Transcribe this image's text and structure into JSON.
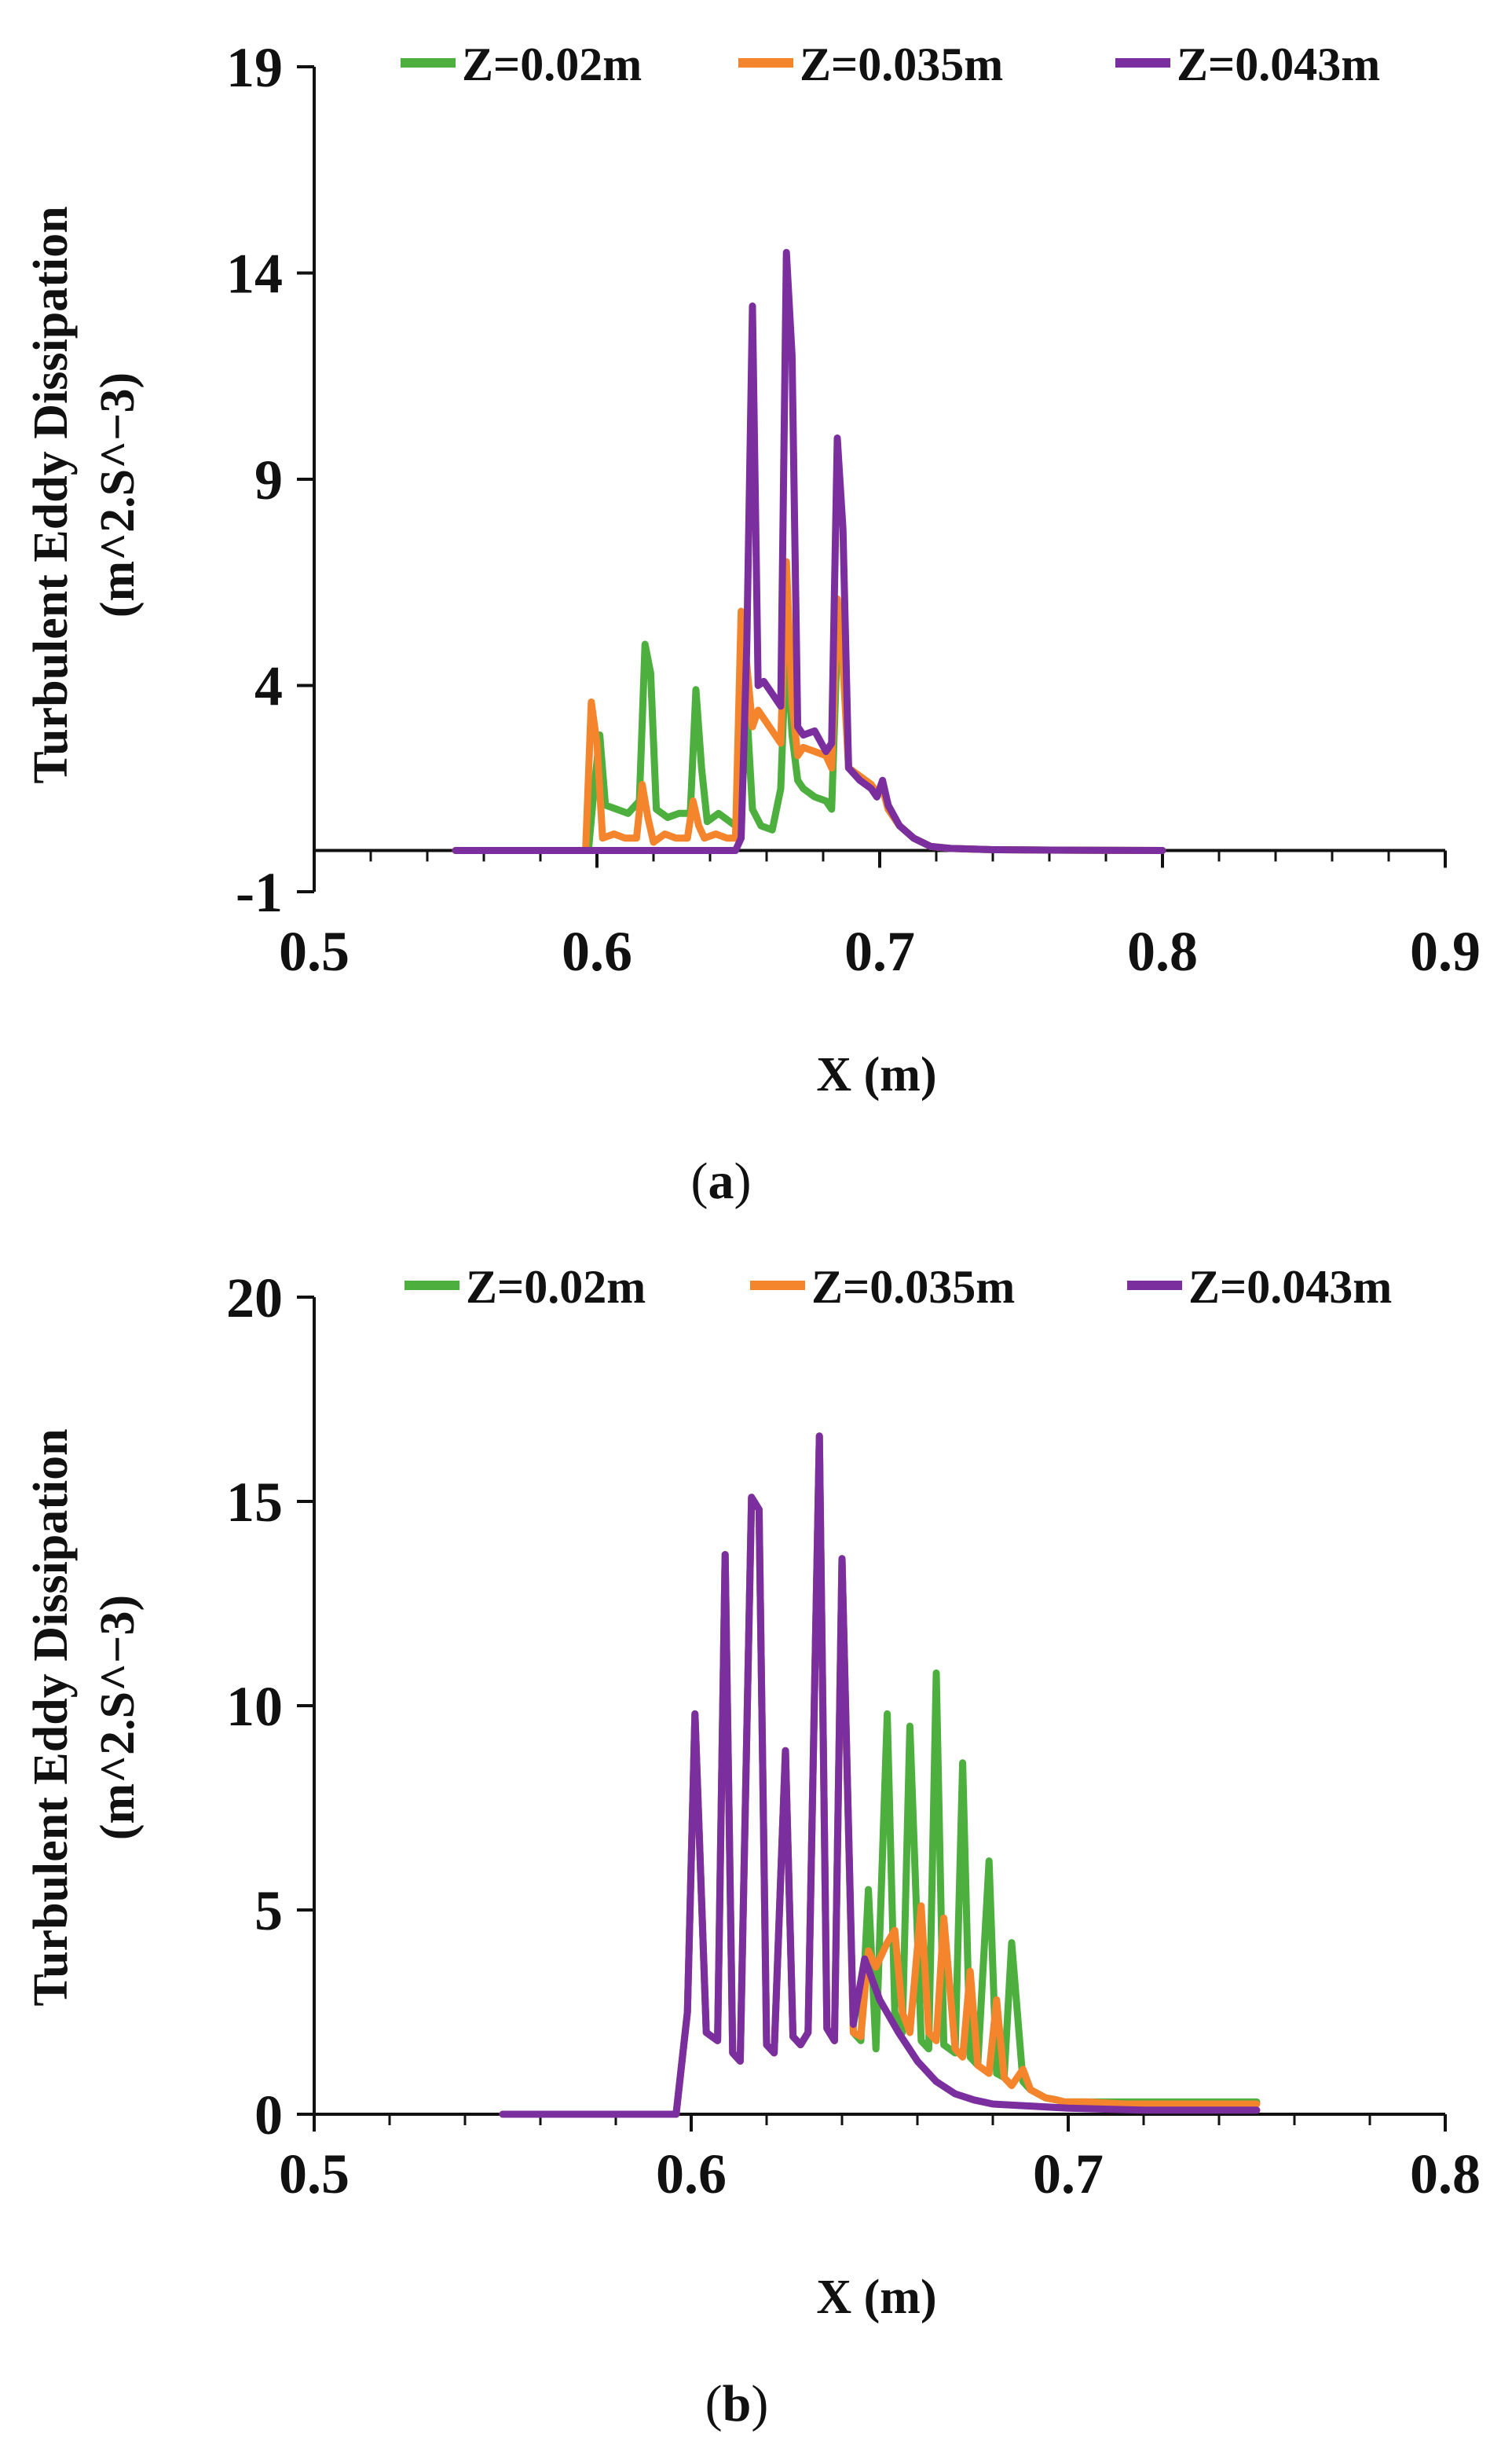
{
  "chart_data": [
    {
      "id": "a",
      "type": "line",
      "caption": {
        "open": "(",
        "letter": "a",
        "close": ")"
      },
      "title": "",
      "xlabel": "X (m)",
      "ylabel": [
        "Turbulent Eddy Dissipation",
        "(m^2.S^−3)"
      ],
      "xlim": [
        0.5,
        0.9
      ],
      "ylim": [
        -1,
        19
      ],
      "xticks": [
        0.5,
        0.6,
        0.7,
        0.8,
        0.9
      ],
      "xtick_labels": [
        "0.5",
        "0.6",
        "0.7",
        "0.8",
        "0.9"
      ],
      "yticks": [
        -1,
        4,
        9,
        14,
        19
      ],
      "ytick_labels": [
        "-1",
        "4",
        "9",
        "14",
        "19"
      ],
      "grid": false,
      "legend_position": "top",
      "series": [
        {
          "name": "Z=0.02m",
          "color": "#4caf3e",
          "x": [
            0.55,
            0.597,
            0.599,
            0.601,
            0.603,
            0.607,
            0.611,
            0.615,
            0.617,
            0.619,
            0.621,
            0.625,
            0.629,
            0.633,
            0.635,
            0.637,
            0.639,
            0.643,
            0.647,
            0.649,
            0.651,
            0.653,
            0.655,
            0.658,
            0.662,
            0.665,
            0.667,
            0.669,
            0.671,
            0.673,
            0.677,
            0.681,
            0.683,
            0.685,
            0.687,
            0.689,
            0.693,
            0.697,
            0.699,
            0.701,
            0.703,
            0.707,
            0.712,
            0.718,
            0.725,
            0.74,
            0.76,
            0.8
          ],
          "values": [
            0,
            0,
            1.5,
            2.8,
            1.1,
            1.0,
            0.9,
            1.2,
            5.0,
            4.3,
            1.0,
            0.8,
            0.9,
            0.9,
            3.9,
            2.0,
            0.7,
            0.9,
            0.7,
            0.6,
            1.0,
            3.4,
            1.0,
            0.6,
            0.5,
            1.5,
            5.2,
            2.8,
            1.7,
            1.5,
            1.3,
            1.2,
            1.0,
            5.1,
            4.9,
            2.0,
            1.8,
            1.6,
            1.3,
            1.6,
            1.0,
            0.6,
            0.3,
            0.1,
            0.05,
            0.02,
            0.01,
            0
          ]
        },
        {
          "name": "Z=0.035m",
          "color": "#f5852c",
          "x": [
            0.55,
            0.596,
            0.598,
            0.6,
            0.602,
            0.606,
            0.61,
            0.614,
            0.616,
            0.618,
            0.62,
            0.624,
            0.628,
            0.632,
            0.634,
            0.636,
            0.638,
            0.642,
            0.646,
            0.649,
            0.651,
            0.653,
            0.655,
            0.657,
            0.661,
            0.665,
            0.667,
            0.669,
            0.671,
            0.673,
            0.677,
            0.681,
            0.683,
            0.685,
            0.687,
            0.689,
            0.693,
            0.697,
            0.699,
            0.701,
            0.703,
            0.707,
            0.712,
            0.718,
            0.725,
            0.74,
            0.76,
            0.8
          ],
          "values": [
            0,
            0,
            3.6,
            2.6,
            0.3,
            0.4,
            0.3,
            0.3,
            1.6,
            0.8,
            0.2,
            0.4,
            0.3,
            0.3,
            1.2,
            0.6,
            0.3,
            0.4,
            0.3,
            0.3,
            5.8,
            4.5,
            3.0,
            3.4,
            3.0,
            2.6,
            7.0,
            3.6,
            2.3,
            2.5,
            2.4,
            2.3,
            2.0,
            6.1,
            4.5,
            2.0,
            1.8,
            1.6,
            1.4,
            1.5,
            1.0,
            0.6,
            0.3,
            0.1,
            0.05,
            0.02,
            0.01,
            0
          ]
        },
        {
          "name": "Z=0.043m",
          "color": "#7b2e9e",
          "x": [
            0.55,
            0.6,
            0.649,
            0.651,
            0.653,
            0.655,
            0.657,
            0.659,
            0.662,
            0.665,
            0.667,
            0.669,
            0.671,
            0.673,
            0.677,
            0.681,
            0.683,
            0.685,
            0.687,
            0.689,
            0.693,
            0.697,
            0.699,
            0.701,
            0.703,
            0.707,
            0.712,
            0.718,
            0.725,
            0.74,
            0.76,
            0.8
          ],
          "values": [
            0,
            0,
            0,
            0.3,
            5.0,
            13.2,
            4.0,
            4.1,
            3.8,
            3.5,
            14.5,
            12.0,
            3.0,
            2.8,
            2.9,
            2.4,
            2.6,
            10.0,
            7.8,
            2.0,
            1.7,
            1.5,
            1.3,
            1.7,
            1.1,
            0.6,
            0.3,
            0.1,
            0.05,
            0.02,
            0.01,
            0
          ]
        }
      ]
    },
    {
      "id": "b",
      "type": "line",
      "caption": {
        "open": "(",
        "letter": "b",
        "close": ")"
      },
      "title": "",
      "xlabel": "X (m)",
      "ylabel": [
        "Turbulent Eddy Dissipation",
        "(m^2.S^−3)"
      ],
      "xlim": [
        0.5,
        0.8
      ],
      "ylim": [
        0,
        20
      ],
      "xticks": [
        0.5,
        0.6,
        0.7,
        0.8
      ],
      "xtick_labels": [
        "0.5",
        "0.6",
        "0.7",
        "0.8"
      ],
      "yticks": [
        0,
        5,
        10,
        15,
        20
      ],
      "ytick_labels": [
        "0",
        "5",
        "10",
        "15",
        "20"
      ],
      "grid": false,
      "legend_position": "top",
      "series": [
        {
          "name": "Z=0.02m",
          "color": "#4caf3e",
          "x": [
            0.55,
            0.596,
            0.599,
            0.601,
            0.604,
            0.607,
            0.609,
            0.611,
            0.613,
            0.616,
            0.618,
            0.62,
            0.622,
            0.625,
            0.627,
            0.629,
            0.631,
            0.634,
            0.636,
            0.638,
            0.64,
            0.643,
            0.645,
            0.647,
            0.649,
            0.652,
            0.654,
            0.656,
            0.658,
            0.661,
            0.663,
            0.665,
            0.667,
            0.67,
            0.672,
            0.674,
            0.676,
            0.679,
            0.681,
            0.683,
            0.685,
            0.688,
            0.69,
            0.692,
            0.694,
            0.697,
            0.699,
            0.701,
            0.705,
            0.715,
            0.75
          ],
          "values": [
            0,
            0,
            2.5,
            9.8,
            2.0,
            1.8,
            13.7,
            1.5,
            1.3,
            15.1,
            14.8,
            1.7,
            1.5,
            8.9,
            1.9,
            1.7,
            2.0,
            16.6,
            2.1,
            1.8,
            13.6,
            2.0,
            1.8,
            5.5,
            1.6,
            9.8,
            2.5,
            2.0,
            9.5,
            1.8,
            1.6,
            10.8,
            1.7,
            1.5,
            8.6,
            1.4,
            1.2,
            6.2,
            1.0,
            0.9,
            4.2,
            0.8,
            0.6,
            0.5,
            0.4,
            0.35,
            0.3,
            0.3,
            0.3,
            0.3,
            0.3
          ]
        },
        {
          "name": "Z=0.035m",
          "color": "#f5852c",
          "x": [
            0.55,
            0.596,
            0.599,
            0.601,
            0.604,
            0.607,
            0.609,
            0.611,
            0.613,
            0.616,
            0.618,
            0.62,
            0.622,
            0.625,
            0.627,
            0.629,
            0.631,
            0.634,
            0.636,
            0.638,
            0.64,
            0.643,
            0.645,
            0.647,
            0.649,
            0.652,
            0.654,
            0.656,
            0.658,
            0.661,
            0.663,
            0.665,
            0.667,
            0.67,
            0.672,
            0.674,
            0.676,
            0.679,
            0.681,
            0.683,
            0.685,
            0.688,
            0.69,
            0.692,
            0.694,
            0.697,
            0.699,
            0.701,
            0.705,
            0.715,
            0.75
          ],
          "values": [
            0,
            0,
            2.5,
            9.8,
            2.0,
            1.8,
            13.7,
            1.5,
            1.3,
            15.1,
            14.8,
            1.7,
            1.5,
            8.9,
            1.9,
            1.7,
            2.0,
            16.6,
            2.1,
            1.8,
            13.6,
            2.0,
            1.9,
            4.0,
            3.6,
            4.2,
            4.5,
            2.5,
            2.0,
            5.1,
            2.0,
            1.8,
            4.8,
            1.6,
            1.4,
            3.5,
            1.2,
            1.0,
            2.8,
            0.9,
            0.7,
            1.1,
            0.6,
            0.5,
            0.4,
            0.35,
            0.3,
            0.3,
            0.3,
            0.25,
            0.25
          ]
        },
        {
          "name": "Z=0.043m",
          "color": "#7b2e9e",
          "x": [
            0.55,
            0.596,
            0.599,
            0.601,
            0.604,
            0.607,
            0.609,
            0.611,
            0.613,
            0.616,
            0.618,
            0.62,
            0.622,
            0.625,
            0.627,
            0.629,
            0.631,
            0.634,
            0.636,
            0.638,
            0.64,
            0.643,
            0.646,
            0.65,
            0.655,
            0.66,
            0.665,
            0.67,
            0.675,
            0.68,
            0.69,
            0.7,
            0.72,
            0.75
          ],
          "values": [
            0,
            0,
            2.5,
            9.8,
            2.0,
            1.8,
            13.7,
            1.5,
            1.3,
            15.1,
            14.8,
            1.7,
            1.5,
            8.9,
            1.9,
            1.7,
            2.0,
            16.6,
            2.1,
            1.8,
            13.6,
            2.2,
            3.8,
            2.8,
            2.0,
            1.3,
            0.8,
            0.5,
            0.35,
            0.25,
            0.2,
            0.15,
            0.1,
            0.1
          ]
        }
      ]
    }
  ]
}
